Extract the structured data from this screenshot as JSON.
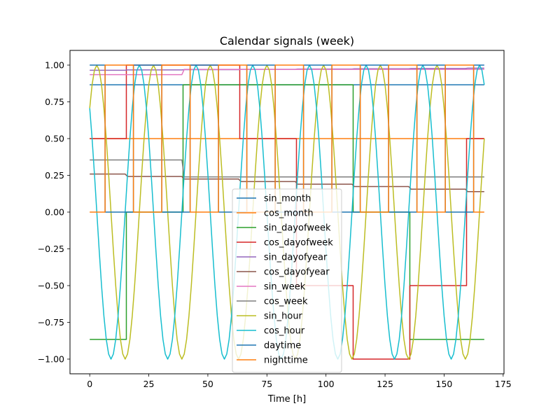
{
  "chart_data": {
    "type": "line",
    "title": "Calendar signals (week)",
    "xlabel": "Time [h]",
    "ylabel": "",
    "xlim": [
      -8.35,
      175.35
    ],
    "ylim": [
      -1.1,
      1.1
    ],
    "xticks": [
      0,
      25,
      50,
      75,
      100,
      125,
      150,
      175
    ],
    "xtick_labels": [
      "0",
      "25",
      "50",
      "75",
      "100",
      "125",
      "150",
      "175"
    ],
    "yticks": [
      -1.0,
      -0.75,
      -0.5,
      -0.25,
      0.0,
      0.25,
      0.5,
      0.75,
      1.0
    ],
    "ytick_labels": [
      "−1.00",
      "−0.75",
      "−0.50",
      "−0.25",
      "0.00",
      "0.25",
      "0.50",
      "0.75",
      "1.00"
    ],
    "grid": false,
    "legend_position": "center",
    "series": [
      {
        "name": "sin_month",
        "color": "#1f77b4",
        "x": [
          0,
          167
        ],
        "y": [
          0.866,
          0.866
        ]
      },
      {
        "name": "cos_month",
        "color": "#ff7f0e",
        "x": [
          0,
          167
        ],
        "y": [
          0.5,
          0.5
        ]
      },
      {
        "name": "sin_dayofweek",
        "color": "#2ca02c",
        "x": [
          0,
          15.5,
          15.5,
          39.5,
          39.5,
          63.5,
          63.5,
          87.5,
          87.5,
          111.5,
          111.5,
          135.5,
          135.5,
          167
        ],
        "y": [
          -0.866,
          -0.866,
          0.0,
          0.0,
          0.866,
          0.866,
          0.866,
          0.866,
          0.866,
          0.866,
          0.0,
          0.0,
          -0.866,
          -0.866
        ]
      },
      {
        "name": "cos_dayofweek",
        "color": "#d62728",
        "x": [
          0,
          15.5,
          15.5,
          39.5,
          39.5,
          63.5,
          63.5,
          87.5,
          87.5,
          111.5,
          111.5,
          135.5,
          135.5,
          159.5,
          159.5,
          167
        ],
        "y": [
          0.5,
          0.5,
          1.0,
          1.0,
          1.0,
          1.0,
          0.5,
          0.5,
          -0.5,
          -0.5,
          -1.0,
          -1.0,
          -0.5,
          -0.5,
          0.5,
          0.5
        ]
      },
      {
        "name": "sin_dayofyear",
        "color": "#9467bd",
        "x": [
          0,
          15,
          16,
          39,
          40,
          63,
          64,
          87,
          88,
          111,
          112,
          135,
          136,
          159,
          160,
          167
        ],
        "y": [
          0.965,
          0.965,
          0.967,
          0.967,
          0.969,
          0.969,
          0.971,
          0.971,
          0.973,
          0.973,
          0.975,
          0.975,
          0.977,
          0.977,
          0.979,
          0.979
        ]
      },
      {
        "name": "cos_dayofyear",
        "color": "#8c564b",
        "x": [
          0,
          15,
          16,
          39,
          40,
          63,
          64,
          87,
          88,
          111,
          112,
          135,
          136,
          159,
          160,
          167
        ],
        "y": [
          0.259,
          0.259,
          0.242,
          0.242,
          0.225,
          0.225,
          0.208,
          0.208,
          0.19,
          0.19,
          0.174,
          0.174,
          0.156,
          0.156,
          0.139,
          0.139
        ]
      },
      {
        "name": "sin_week",
        "color": "#e377c2",
        "x": [
          0,
          39,
          40,
          167
        ],
        "y": [
          0.935,
          0.935,
          0.971,
          0.971
        ]
      },
      {
        "name": "cos_week",
        "color": "#7f7f7f",
        "x": [
          0,
          39,
          40,
          167
        ],
        "y": [
          0.355,
          0.355,
          0.239,
          0.239
        ]
      },
      {
        "name": "sin_hour",
        "color": "#bcbd22",
        "generator": "sin_hour",
        "x_start": 0,
        "x_end": 167,
        "period": 24
      },
      {
        "name": "cos_hour",
        "color": "#17becf",
        "generator": "cos_hour",
        "x_start": 0,
        "x_end": 167,
        "period": 24
      },
      {
        "name": "daytime",
        "color": "#1f77b4",
        "generator": "daytime",
        "x_start": 0,
        "x_end": 167,
        "on_from": 7,
        "on_to": 19
      },
      {
        "name": "nighttime",
        "color": "#ff7f0e",
        "generator": "nighttime",
        "x_start": 0,
        "x_end": 167,
        "on_from": 7,
        "on_to": 19
      }
    ]
  }
}
